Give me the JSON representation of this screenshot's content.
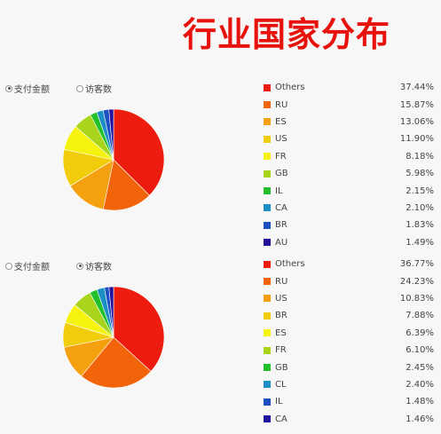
{
  "title": "行业国家分布",
  "radio_labels": {
    "amount": "支付金额",
    "visitors": "访客数"
  },
  "colors": [
    "#ee1c0e",
    "#f2640a",
    "#f4a00f",
    "#f0cc0a",
    "#f5f20d",
    "#a8d51c",
    "#22c02a",
    "#1b8fc4",
    "#1a50c2",
    "#22119c"
  ],
  "chart_data": [
    {
      "type": "pie",
      "selected_metric": "amount",
      "labels": [
        "Others",
        "RU",
        "ES",
        "US",
        "FR",
        "GB",
        "IL",
        "CA",
        "BR",
        "AU"
      ],
      "values": [
        37.44,
        15.87,
        13.06,
        11.9,
        8.18,
        5.98,
        2.15,
        2.1,
        1.83,
        1.49
      ],
      "value_labels": [
        "37.44%",
        "15.87%",
        "13.06%",
        "11.90%",
        "8.18%",
        "5.98%",
        "2.15%",
        "2.10%",
        "1.83%",
        "1.49%"
      ],
      "legend_position": "right"
    },
    {
      "type": "pie",
      "selected_metric": "visitors",
      "labels": [
        "Others",
        "RU",
        "US",
        "BR",
        "ES",
        "FR",
        "GB",
        "CL",
        "IL",
        "CA"
      ],
      "values": [
        36.77,
        24.23,
        10.83,
        7.88,
        6.39,
        6.1,
        2.45,
        2.4,
        1.48,
        1.46
      ],
      "value_labels": [
        "36.77%",
        "24.23%",
        "10.83%",
        "7.88%",
        "6.39%",
        "6.10%",
        "2.45%",
        "2.40%",
        "1.48%",
        "1.46%"
      ],
      "legend_position": "right"
    }
  ]
}
